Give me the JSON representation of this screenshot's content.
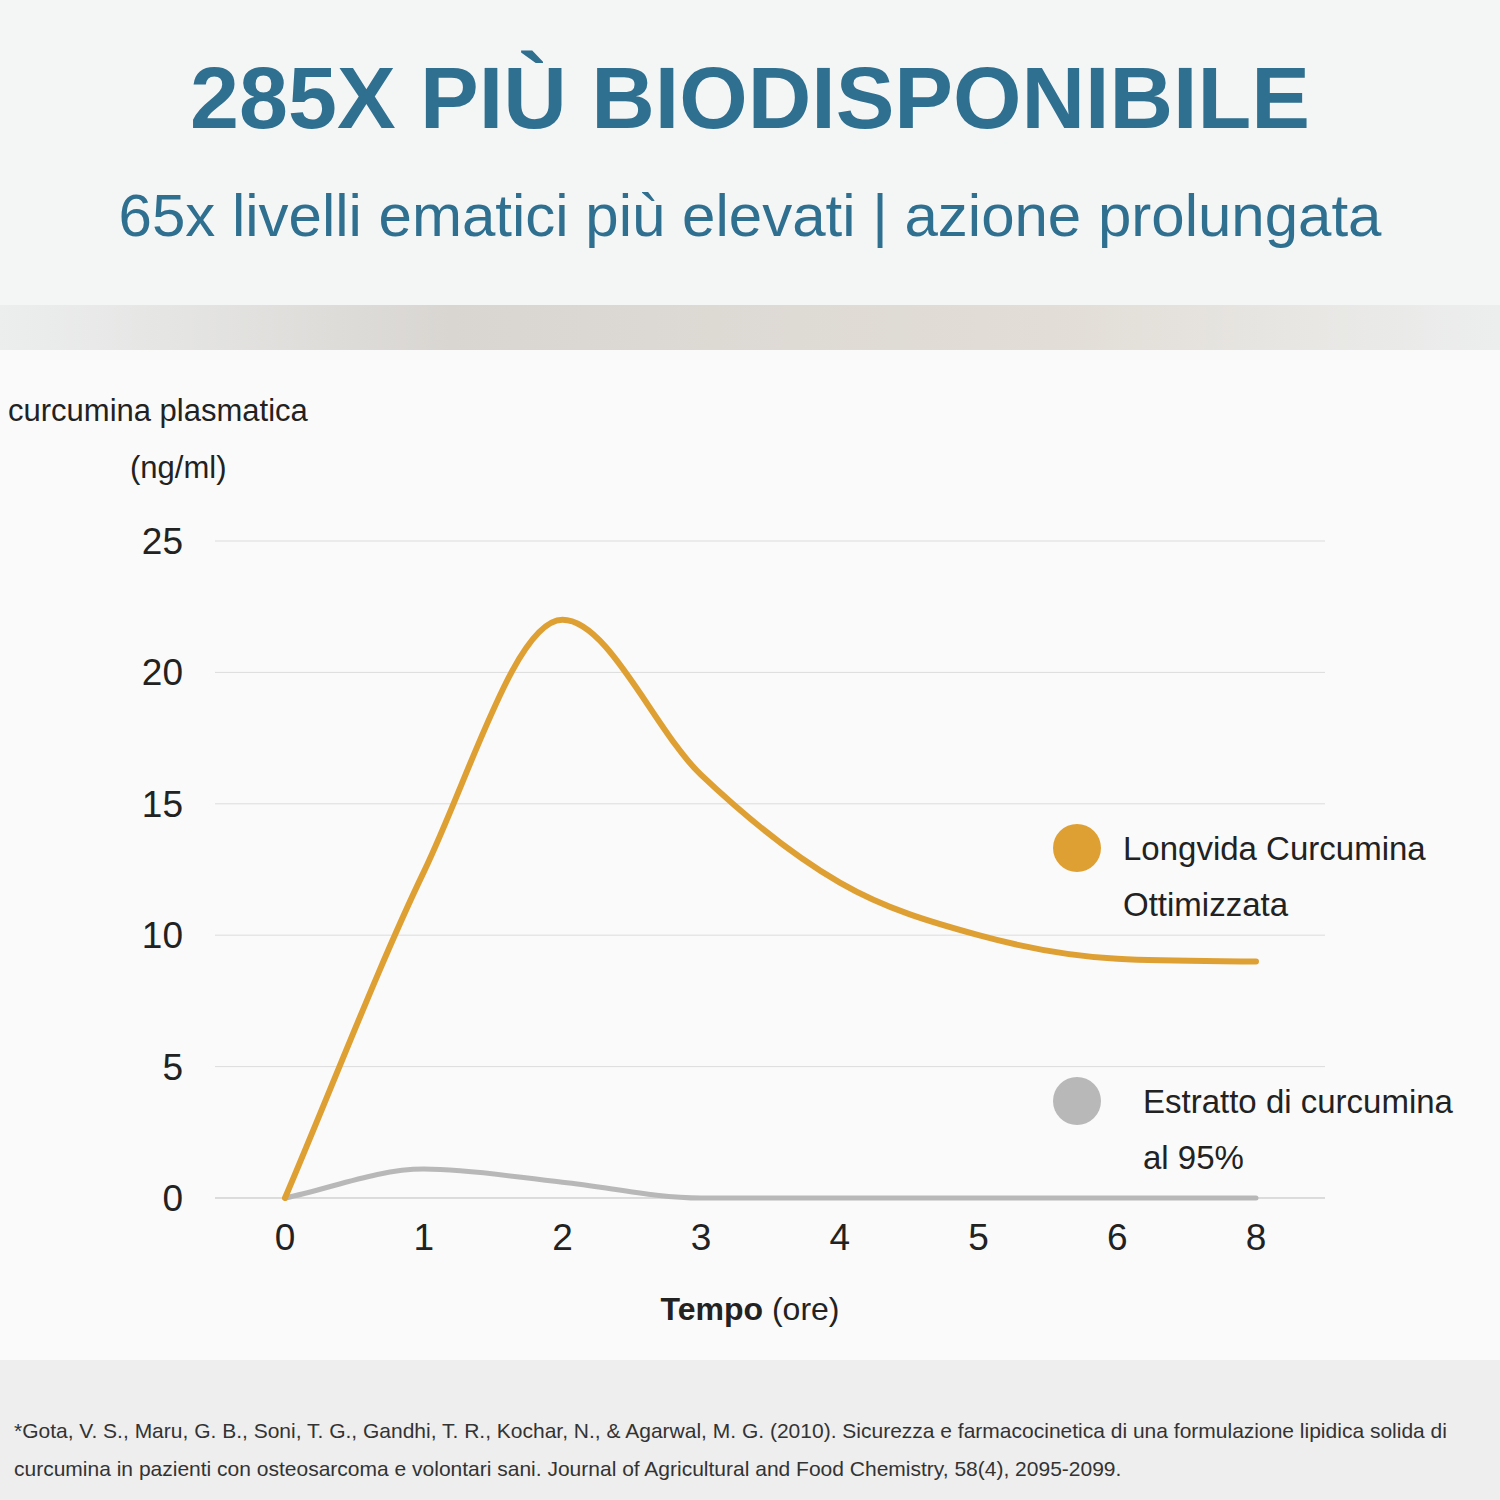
{
  "chart_data": {
    "type": "line",
    "title": "285X PIÙ BIODISPONIBILE",
    "subtitle": "65x livelli ematici più elevati | azione prolungata",
    "y_label": "curcumina plasmatica (ng/ml)",
    "x_label": "Tempo (ore)",
    "categories": [
      "0",
      "1",
      "2",
      "3",
      "4",
      "5",
      "6",
      "8"
    ],
    "series": [
      {
        "name": "Longvida Curcumina Ottimizzata",
        "color": "#dfa033",
        "values": [
          0,
          12.4,
          22,
          16.1,
          12,
          10,
          9.1,
          9
        ]
      },
      {
        "name": "Estratto di curcumina al 95%",
        "color": "#b8b8b8",
        "values": [
          0,
          1.1,
          0.6,
          0,
          0,
          0,
          0,
          0
        ]
      }
    ],
    "ylim": [
      0,
      25
    ],
    "yticks": [
      0,
      5,
      10,
      15,
      20,
      25
    ],
    "grid": true,
    "legend": "right",
    "footnote": "*Gota, V. S., Maru, G. B., Soni, T. G., Gandhi, T. R., Kochar, N., & Agarwal, M. G. (2010). Sicurezza e farmacocinetica di una formulazione lipidica solida di curcumina in pazienti con osteosarcoma e volontari sani. Journal of Agricultural and Food Chemistry, 58(4), 2095-2099."
  }
}
